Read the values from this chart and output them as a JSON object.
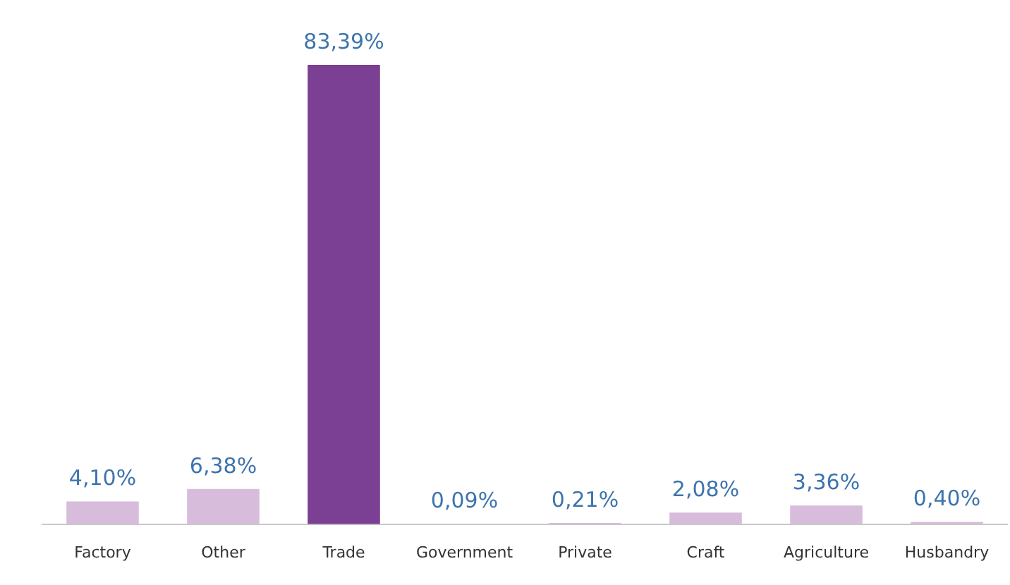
{
  "chart_data": {
    "type": "bar",
    "categories": [
      "Factory",
      "Other",
      "Trade",
      "Government",
      "Private",
      "Craft",
      "Agriculture",
      "Husbandry"
    ],
    "values": [
      4.1,
      6.38,
      83.39,
      0.09,
      0.21,
      2.08,
      3.36,
      0.4
    ],
    "colors": [
      "#d8bcdc",
      "#d8bcdc",
      "#7b3f93",
      "#d8bcdc",
      "#d8bcdc",
      "#d8bcdc",
      "#d8bcdc",
      "#d8bcdc"
    ],
    "value_labels": [
      "4,10%",
      "6,38%",
      "83,39%",
      "0,09%",
      "0,21%",
      "2,08%",
      "3,36%",
      "0,40%"
    ],
    "grid": false,
    "legend": false
  }
}
